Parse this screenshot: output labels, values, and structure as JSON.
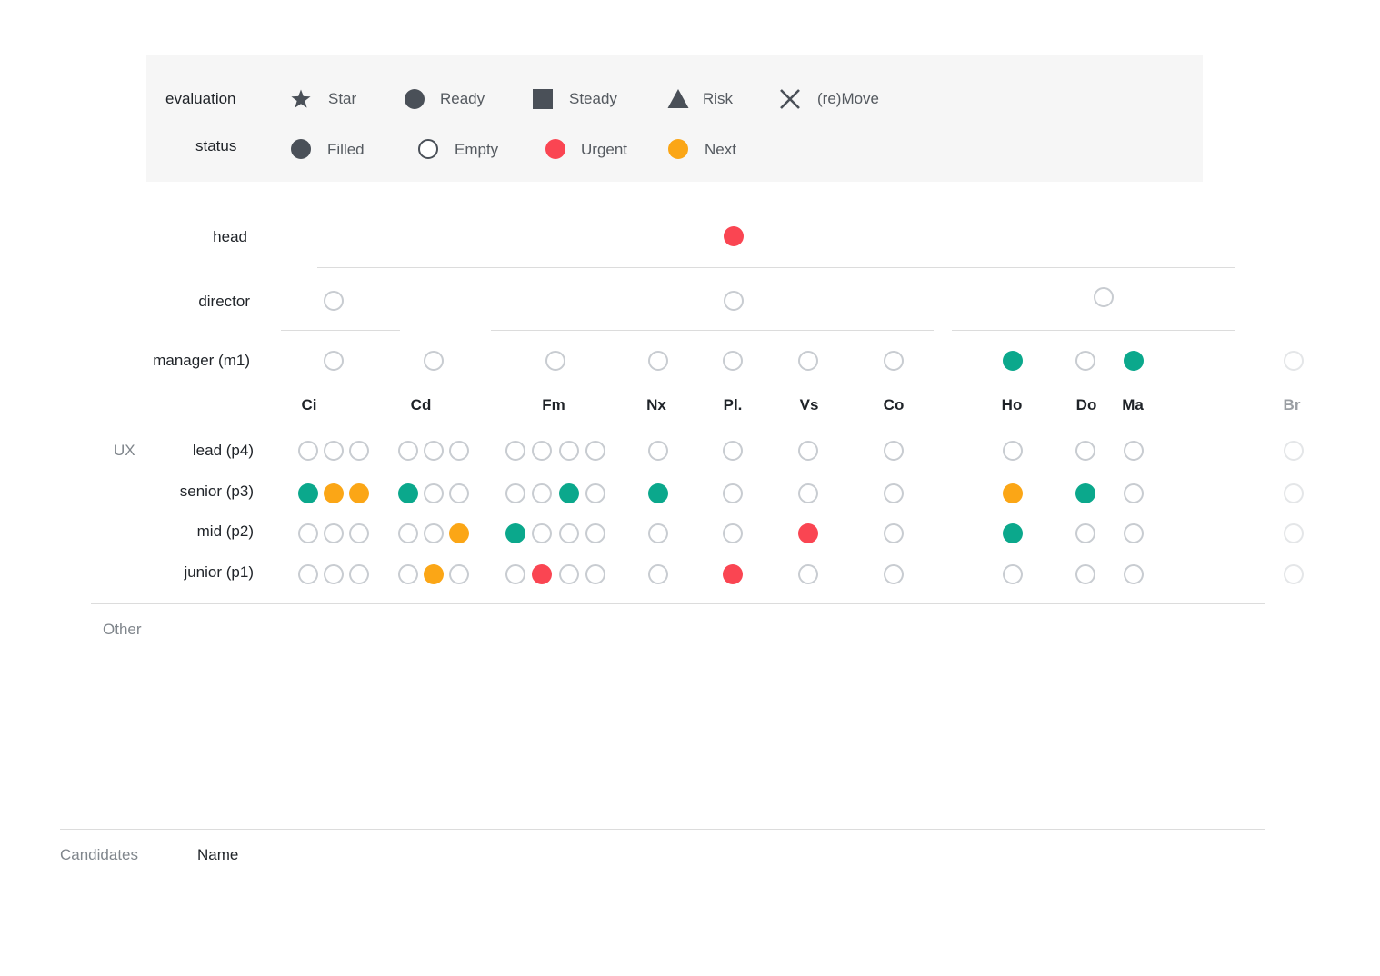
{
  "legend": {
    "evaluation_label": "evaluation",
    "status_label": "status",
    "evaluation_items": [
      {
        "icon": "star-icon",
        "label": "Star"
      },
      {
        "icon": "circle-icon",
        "label": "Ready"
      },
      {
        "icon": "square-icon",
        "label": "Steady"
      },
      {
        "icon": "triangle-icon",
        "label": "Risk"
      },
      {
        "icon": "x-icon",
        "label": "(re)Move"
      }
    ],
    "status_items": [
      {
        "icon": "filled-dot-icon",
        "label": "Filled"
      },
      {
        "icon": "empty-dot-icon",
        "label": "Empty"
      },
      {
        "icon": "urgent-dot-icon",
        "label": "Urgent"
      },
      {
        "icon": "next-dot-icon",
        "label": "Next"
      }
    ]
  },
  "colors": {
    "filled": "#0ba88c",
    "next": "#fba616",
    "urgent": "#fa4552",
    "empty_border": "#c8ccd1",
    "legend_icon": "#4a5058"
  },
  "org": {
    "head_label": "head",
    "director_label": "director",
    "manager_label": "manager (m1)",
    "head_status": "urgent",
    "director_statuses": [
      "empty",
      "empty",
      "empty"
    ],
    "teams": [
      {
        "name": "Ci",
        "manager": "empty",
        "lead": [
          "empty",
          "empty",
          "empty"
        ],
        "senior": [
          "filled",
          "next",
          "next"
        ],
        "mid": [
          "empty",
          "empty",
          "empty"
        ],
        "junior": [
          "empty",
          "empty",
          "empty"
        ]
      },
      {
        "name": "Cd",
        "manager": "empty",
        "lead": [
          "empty",
          "empty",
          "empty"
        ],
        "senior": [
          "filled",
          "empty",
          "empty"
        ],
        "mid": [
          "empty",
          "empty",
          "next"
        ],
        "junior": [
          "empty",
          "next",
          "empty"
        ]
      },
      {
        "name": "Fm",
        "manager": "empty",
        "lead": [
          "empty",
          "empty",
          "empty",
          "empty"
        ],
        "senior": [
          "empty",
          "empty",
          "filled",
          "empty"
        ],
        "mid": [
          "filled",
          "empty",
          "empty",
          "empty"
        ],
        "junior": [
          "empty",
          "urgent",
          "empty",
          "empty"
        ]
      },
      {
        "name": "Nx",
        "manager": "empty",
        "lead": [
          "empty"
        ],
        "senior": [
          "filled"
        ],
        "mid": [
          "empty"
        ],
        "junior": [
          "empty"
        ]
      },
      {
        "name": "Pl.",
        "manager": "empty",
        "lead": [
          "empty"
        ],
        "senior": [
          "empty"
        ],
        "mid": [
          "empty"
        ],
        "junior": [
          "urgent"
        ]
      },
      {
        "name": "Vs",
        "manager": "empty",
        "lead": [
          "empty"
        ],
        "senior": [
          "empty"
        ],
        "mid": [
          "urgent"
        ],
        "junior": [
          "empty"
        ]
      },
      {
        "name": "Co",
        "manager": "empty",
        "lead": [
          "empty"
        ],
        "senior": [
          "empty"
        ],
        "mid": [
          "empty"
        ],
        "junior": [
          "empty"
        ]
      },
      {
        "name": "Ho",
        "manager": "filled",
        "lead": [
          "empty"
        ],
        "senior": [
          "next"
        ],
        "mid": [
          "filled"
        ],
        "junior": [
          "empty"
        ]
      },
      {
        "name": "Do",
        "manager": "empty",
        "lead": [
          "empty"
        ],
        "senior": [
          "filled"
        ],
        "mid": [
          "empty"
        ],
        "junior": [
          "empty"
        ]
      },
      {
        "name": "Ma",
        "manager": "filled",
        "lead": [
          "empty"
        ],
        "senior": [
          "empty"
        ],
        "mid": [
          "empty"
        ],
        "junior": [
          "empty"
        ]
      },
      {
        "name": "Br",
        "manager": "empty",
        "lead": [
          "empty"
        ],
        "senior": [
          "empty"
        ],
        "mid": [
          "empty"
        ],
        "junior": [
          "empty"
        ],
        "faint": true
      }
    ]
  },
  "ux": {
    "section_label": "UX",
    "levels": [
      "lead (p4)",
      "senior (p3)",
      "mid (p2)",
      "junior (p1)"
    ]
  },
  "other": {
    "section_label": "Other"
  },
  "candidates": {
    "section_label": "Candidates",
    "name_header": "Name"
  }
}
